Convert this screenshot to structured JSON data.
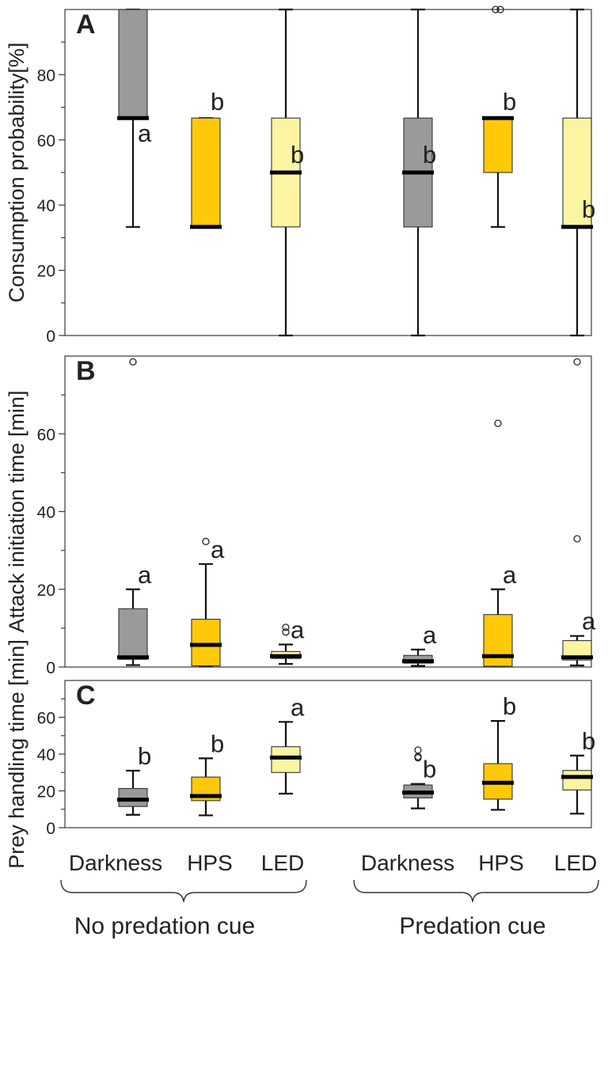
{
  "colors": {
    "Darkness": "#9a9a9a",
    "HPS": "#ffc90a",
    "LED": "#fbf4a0"
  },
  "groups": [
    {
      "label": "No predation cue",
      "lights": [
        "Darkness",
        "HPS",
        "LED"
      ]
    },
    {
      "label": "Predation cue",
      "lights": [
        "Darkness",
        "HPS",
        "LED"
      ]
    }
  ],
  "chart_data": [
    {
      "type": "box",
      "panel_letter": "A",
      "ylabel": "Consumption probability[%]",
      "ylim": [
        0,
        100
      ],
      "yticks": [
        0,
        20,
        40,
        60,
        80
      ],
      "minor_yticks": [
        10,
        30,
        50,
        70,
        90
      ],
      "boxes": [
        {
          "group": "No predation cue",
          "light": "Darkness",
          "whisker_low": 33.3,
          "q1": 66.7,
          "median": 66.7,
          "q3": 100,
          "whisker_high": 100,
          "outliers": [],
          "sig": "a"
        },
        {
          "group": "No predation cue",
          "light": "HPS",
          "whisker_low": 33.3,
          "q1": 33.3,
          "median": 33.3,
          "q3": 66.7,
          "whisker_high": 66.7,
          "outliers": [],
          "sig": "b"
        },
        {
          "group": "No predation cue",
          "light": "LED",
          "whisker_low": 0,
          "q1": 33.3,
          "median": 50,
          "q3": 66.7,
          "whisker_high": 100,
          "outliers": [],
          "sig": "b"
        },
        {
          "group": "Predation cue",
          "light": "Darkness",
          "whisker_low": 0,
          "q1": 33.3,
          "median": 50,
          "q3": 66.7,
          "whisker_high": 100,
          "outliers": [],
          "sig": "b"
        },
        {
          "group": "Predation cue",
          "light": "HPS",
          "whisker_low": 33.3,
          "q1": 50,
          "median": 66.7,
          "q3": 66.7,
          "whisker_high": 66.7,
          "outliers": [
            100,
            100
          ],
          "sig": "b"
        },
        {
          "group": "Predation cue",
          "light": "LED",
          "whisker_low": 0,
          "q1": 33.3,
          "median": 33.3,
          "q3": 66.7,
          "whisker_high": 100,
          "outliers": [],
          "sig": "b"
        }
      ]
    },
    {
      "type": "box",
      "panel_letter": "B",
      "ylabel": "Attack initiation time [min]",
      "ylim": [
        0,
        80
      ],
      "yticks": [
        0,
        20,
        40,
        60
      ],
      "minor_yticks": [
        10,
        30,
        50,
        70
      ],
      "boxes": [
        {
          "group": "No predation cue",
          "light": "Darkness",
          "whisker_low": 0.5,
          "q1": 2,
          "median": 2.5,
          "q3": 15,
          "whisker_high": 20,
          "outliers": [
            78.5
          ],
          "sig": "a"
        },
        {
          "group": "No predation cue",
          "light": "HPS",
          "whisker_low": 0.3,
          "q1": 0.3,
          "median": 5.7,
          "q3": 12.3,
          "whisker_high": 26.5,
          "outliers": [
            32.3
          ],
          "sig": "a"
        },
        {
          "group": "No predation cue",
          "light": "LED",
          "whisker_low": 0.8,
          "q1": 2.2,
          "median": 2.8,
          "q3": 4,
          "whisker_high": 5.8,
          "outliers": [
            9,
            10.2
          ],
          "sig": "a"
        },
        {
          "group": "Predation cue",
          "light": "Darkness",
          "whisker_low": 0.3,
          "q1": 1,
          "median": 1.5,
          "q3": 3,
          "whisker_high": 4.5,
          "outliers": [],
          "sig": "a"
        },
        {
          "group": "Predation cue",
          "light": "HPS",
          "whisker_low": 0.2,
          "q1": 0.2,
          "median": 2.8,
          "q3": 13.5,
          "whisker_high": 20,
          "outliers": [
            62.7
          ],
          "sig": "a"
        },
        {
          "group": "Predation cue",
          "light": "LED",
          "whisker_low": 0.4,
          "q1": 1.8,
          "median": 2.5,
          "q3": 6.8,
          "whisker_high": 8,
          "outliers": [
            33,
            78.5
          ],
          "sig": "a"
        }
      ]
    },
    {
      "type": "box",
      "panel_letter": "C",
      "ylabel": "Prey handling time [min]",
      "ylim": [
        0,
        80
      ],
      "yticks": [
        0,
        20,
        40,
        60
      ],
      "minor_yticks": [
        10,
        30,
        50,
        70
      ],
      "boxes": [
        {
          "group": "No predation cue",
          "light": "Darkness",
          "whisker_low": 7,
          "q1": 11.5,
          "median": 15.2,
          "q3": 21.3,
          "whisker_high": 31,
          "outliers": [],
          "sig": "b"
        },
        {
          "group": "No predation cue",
          "light": "HPS",
          "whisker_low": 6.7,
          "q1": 14.7,
          "median": 17.2,
          "q3": 27.5,
          "whisker_high": 37.7,
          "outliers": [],
          "sig": "b"
        },
        {
          "group": "No predation cue",
          "light": "LED",
          "whisker_low": 18.5,
          "q1": 30,
          "median": 38.1,
          "q3": 44,
          "whisker_high": 57.5,
          "outliers": [],
          "sig": "a"
        },
        {
          "group": "Predation cue",
          "light": "Darkness",
          "whisker_low": 10.5,
          "q1": 16.2,
          "median": 19.1,
          "q3": 23.2,
          "whisker_high": 23.8,
          "outliers": [
            38,
            38.6,
            42.2
          ],
          "sig": "b"
        },
        {
          "group": "Predation cue",
          "light": "HPS",
          "whisker_low": 9.7,
          "q1": 15.5,
          "median": 24.4,
          "q3": 34.8,
          "whisker_high": 58,
          "outliers": [],
          "sig": "b"
        },
        {
          "group": "Predation cue",
          "light": "LED",
          "whisker_low": 7.6,
          "q1": 20.5,
          "median": 27.6,
          "q3": 31.1,
          "whisker_high": 39.2,
          "outliers": [],
          "sig": "b"
        }
      ]
    }
  ]
}
